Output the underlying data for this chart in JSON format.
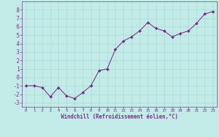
{
  "x": [
    0,
    1,
    2,
    3,
    4,
    5,
    6,
    7,
    8,
    9,
    10,
    11,
    12,
    13,
    14,
    15,
    16,
    17,
    18,
    19,
    20,
    21,
    22,
    23
  ],
  "y": [
    -1.0,
    -1.0,
    -1.2,
    -2.3,
    -1.2,
    -2.2,
    -2.5,
    -1.8,
    -1.0,
    0.8,
    1.0,
    3.3,
    4.3,
    4.8,
    5.5,
    6.5,
    5.8,
    5.5,
    4.8,
    5.2,
    5.5,
    6.4,
    7.5,
    7.8
  ],
  "line_color": "#7B2D8B",
  "marker": "D",
  "marker_size": 2,
  "bg_color": "#C2EBE7",
  "grid_color": "#A8D8D8",
  "tick_color": "#7B2D8B",
  "label_color": "#7B2D8B",
  "xlabel": "Windchill (Refroidissement éolien,°C)",
  "ylim": [
    -3.5,
    9.0
  ],
  "xlim": [
    -0.5,
    23.5
  ],
  "yticks": [
    -3,
    -2,
    -1,
    0,
    1,
    2,
    3,
    4,
    5,
    6,
    7,
    8
  ],
  "xticks": [
    0,
    1,
    2,
    3,
    4,
    5,
    6,
    7,
    8,
    9,
    10,
    11,
    12,
    13,
    14,
    15,
    16,
    17,
    18,
    19,
    20,
    21,
    22,
    23
  ],
  "xlabel_fontsize": 5.5,
  "xtick_fontsize": 4.5,
  "ytick_fontsize": 5.5
}
